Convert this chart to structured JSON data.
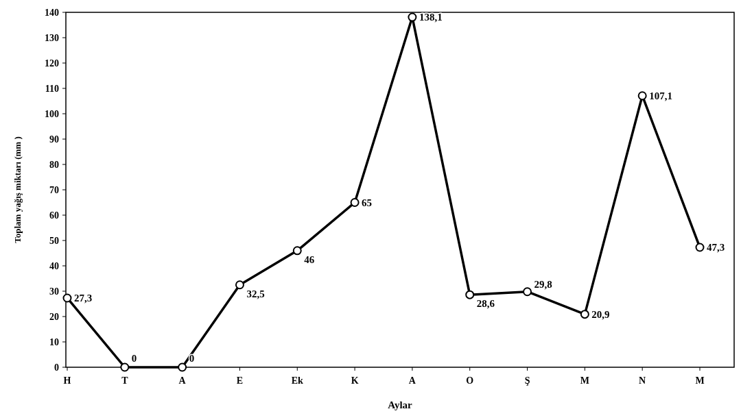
{
  "chart_data": {
    "type": "line",
    "xlabel": "Aylar",
    "ylabel": "Toplam yağış miktarı (mm )",
    "categories": [
      "H",
      "T",
      "A",
      "E",
      "Ek",
      "K",
      "A",
      "O",
      "Ş",
      "M",
      "N",
      "M"
    ],
    "series": [
      {
        "color": "#000000",
        "values": [
          27.3,
          0,
          0,
          32.5,
          46,
          65,
          138.1,
          28.6,
          29.8,
          20.9,
          107.1,
          47.3
        ],
        "value_labels": [
          "27,3",
          "0",
          "0",
          "32,5",
          "46",
          "65",
          "138,1",
          "28,6",
          "29,8",
          "20,9",
          "107,1",
          "47,3"
        ]
      }
    ],
    "ylim": [
      0,
      140
    ],
    "yticks": [
      0,
      10,
      20,
      30,
      40,
      50,
      60,
      70,
      80,
      90,
      100,
      110,
      120,
      130,
      140
    ],
    "grid": false,
    "marker": "circle",
    "line_style": "solid"
  }
}
